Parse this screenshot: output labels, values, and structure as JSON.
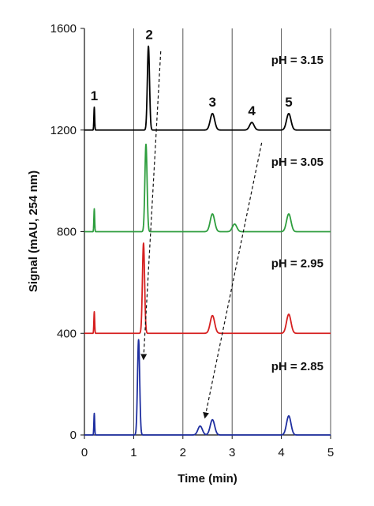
{
  "chart_data": {
    "type": "line",
    "title": "",
    "xlabel": "Time (min)",
    "ylabel": "Signal (mAU, 254 nm)",
    "xlim": [
      0,
      5
    ],
    "ylim": [
      0,
      1600
    ],
    "x_ticks": [
      "0",
      "1",
      "2",
      "3",
      "4",
      "5"
    ],
    "y_ticks": [
      "0",
      "400",
      "800",
      "1200",
      "1600"
    ],
    "grid": "vertical dark gray lines at x = 1, 2, 3, 4, 5",
    "series": [
      {
        "name": "pH = 3.15",
        "color": "#000000",
        "baseline": 1200,
        "peaks": [
          {
            "label": "1",
            "time": 0.2,
            "height": 90
          },
          {
            "label": "2",
            "time": 1.3,
            "height": 330
          },
          {
            "label": "3",
            "time": 2.6,
            "height": 65
          },
          {
            "label": "4",
            "time": 3.4,
            "height": 30
          },
          {
            "label": "5",
            "time": 4.15,
            "height": 65
          }
        ]
      },
      {
        "name": "pH = 3.05",
        "color": "#2e9e3e",
        "baseline": 800,
        "peaks": [
          {
            "time": 0.2,
            "height": 90
          },
          {
            "time": 1.25,
            "height": 345
          },
          {
            "time": 2.6,
            "height": 70
          },
          {
            "time": 3.05,
            "height": 30
          },
          {
            "time": 4.15,
            "height": 70
          }
        ]
      },
      {
        "name": "pH = 2.95",
        "color": "#d62020",
        "baseline": 400,
        "peaks": [
          {
            "time": 0.2,
            "height": 85
          },
          {
            "time": 1.2,
            "height": 355
          },
          {
            "time": 2.6,
            "height": 70
          },
          {
            "time": 4.15,
            "height": 75
          }
        ]
      },
      {
        "name": "pH = 2.85",
        "color": "#1f2fa0",
        "baseline": 0,
        "peaks": [
          {
            "time": 0.2,
            "height": 85
          },
          {
            "time": 1.1,
            "height": 375
          },
          {
            "time": 2.35,
            "height": 35
          },
          {
            "time": 2.6,
            "height": 60
          },
          {
            "time": 4.15,
            "height": 75
          }
        ]
      }
    ],
    "annotations": [
      {
        "type": "dashed-arrow",
        "from": [
          1.55,
          1510
        ],
        "to": [
          1.2,
          300
        ]
      },
      {
        "type": "dashed-arrow",
        "from": [
          3.6,
          1150
        ],
        "to": [
          2.45,
          70
        ]
      }
    ]
  }
}
